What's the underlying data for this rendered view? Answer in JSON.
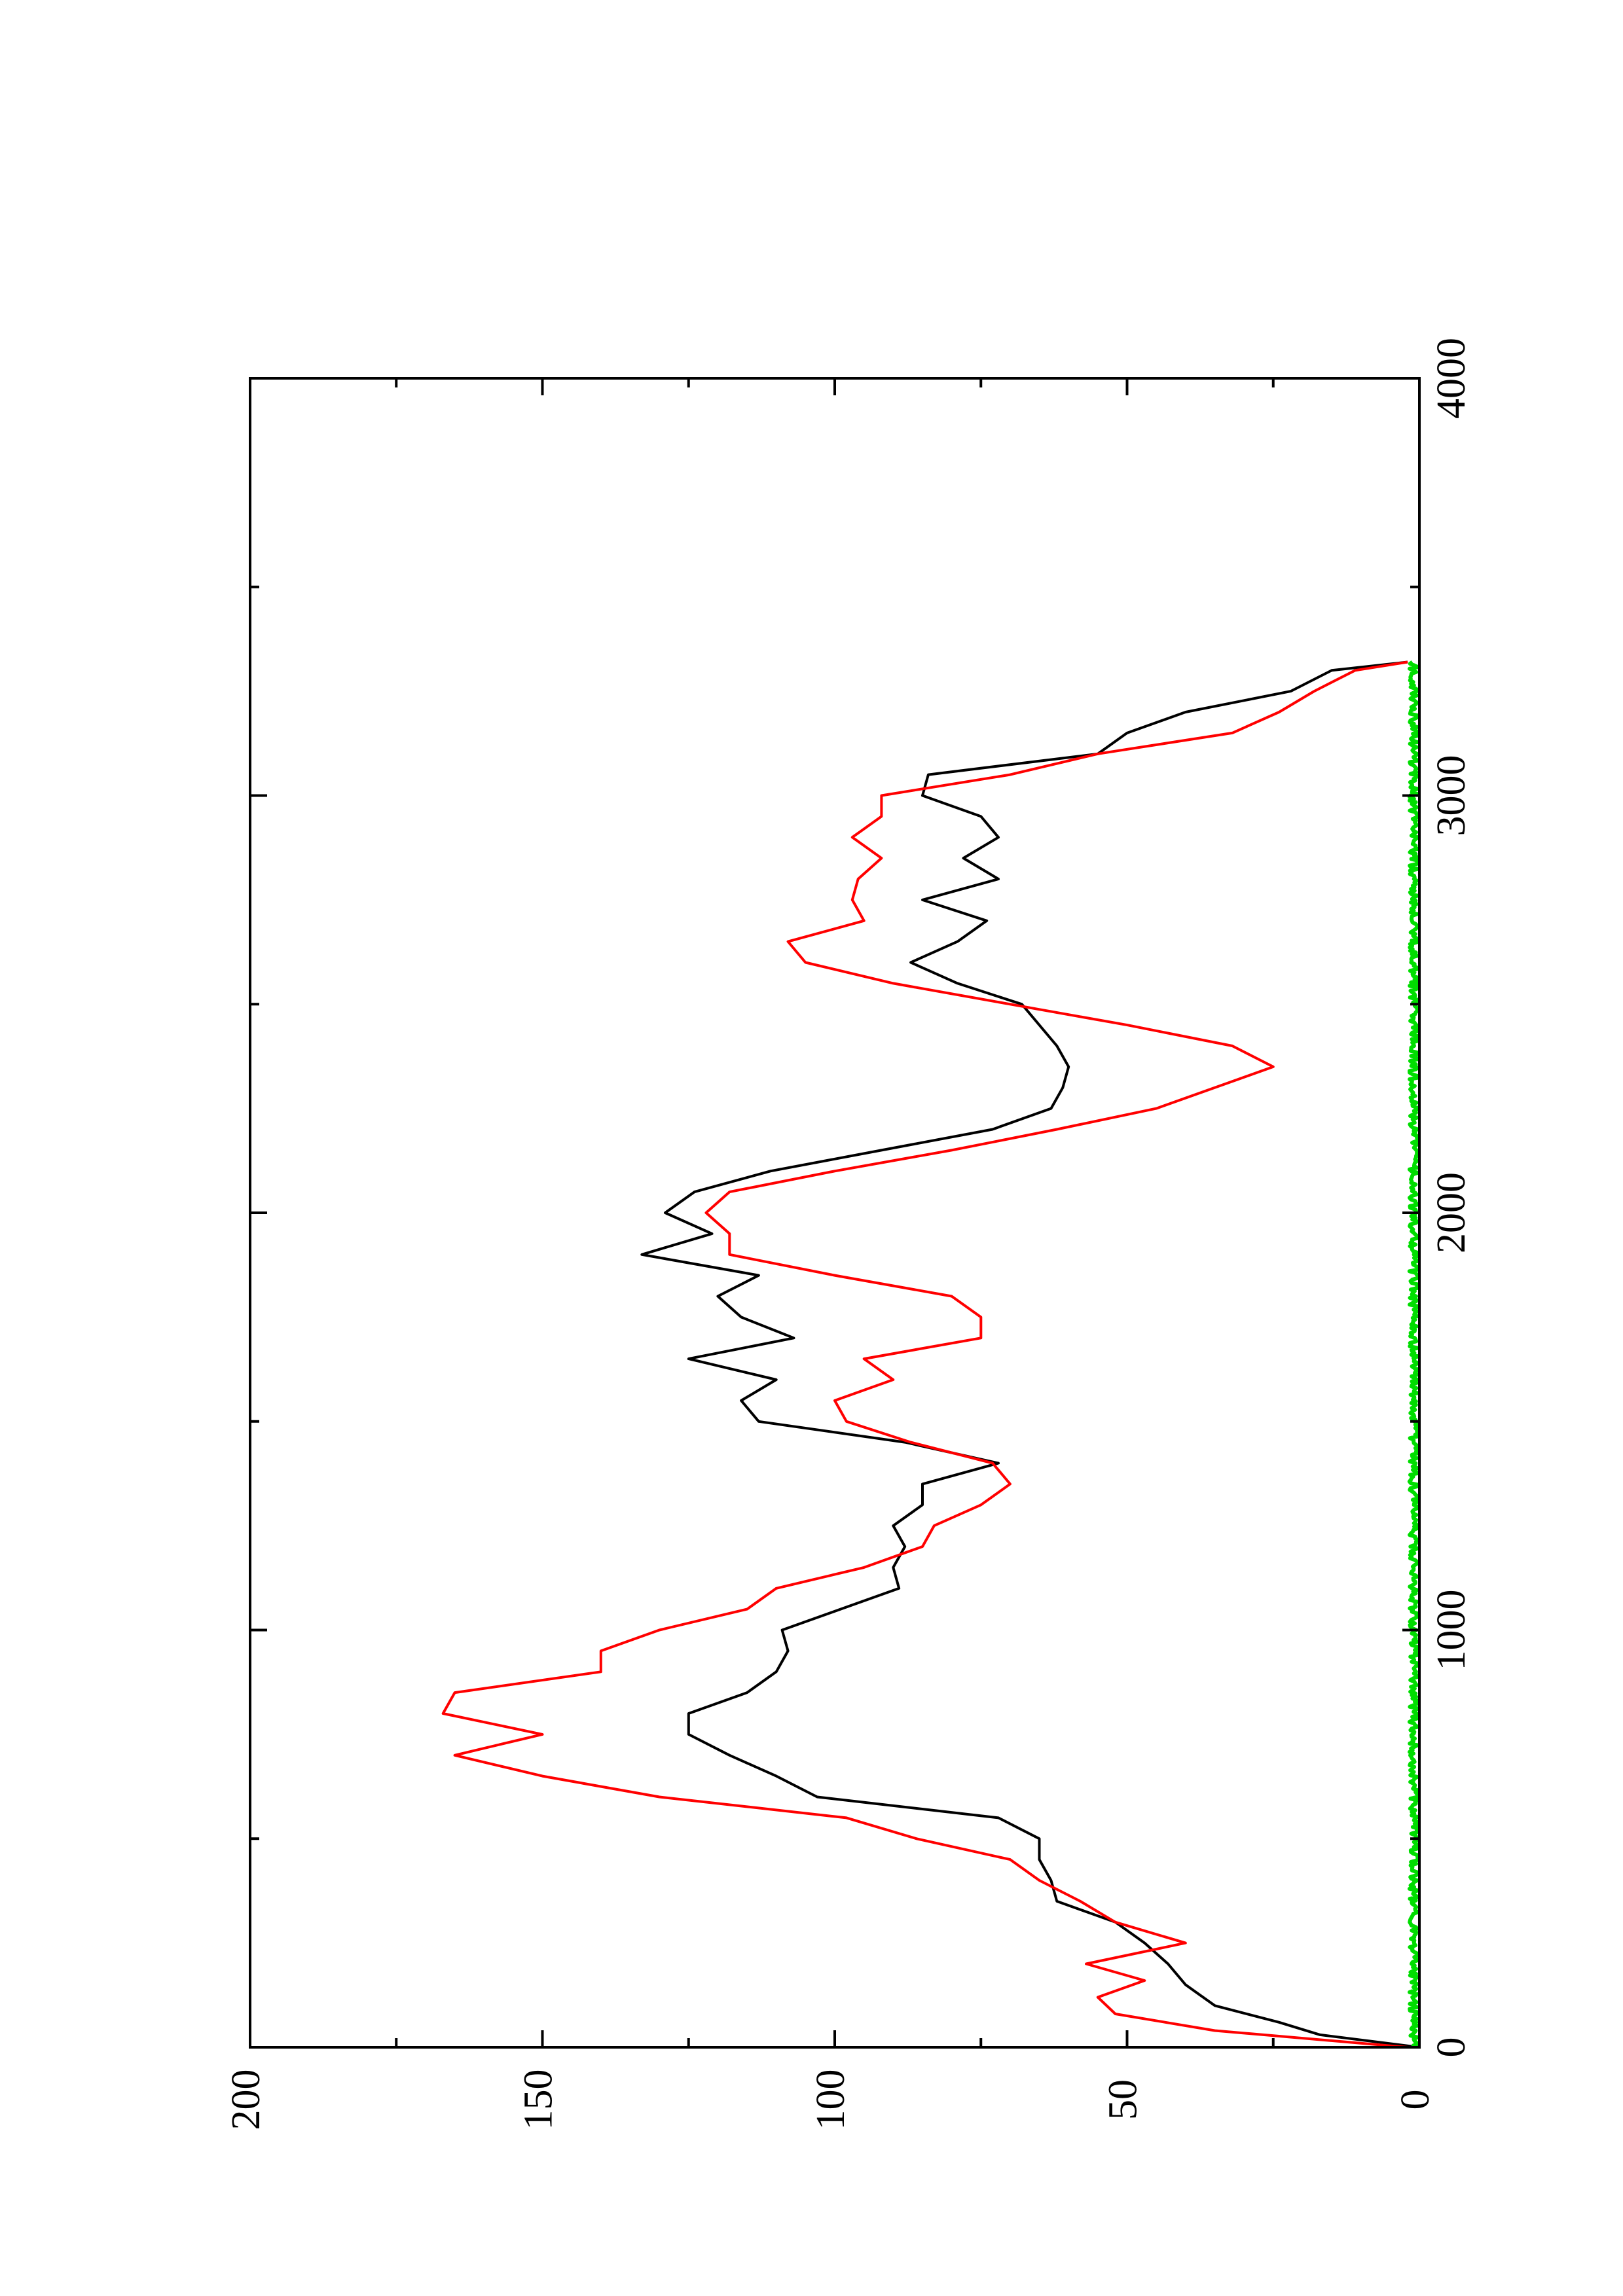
{
  "chart_data": {
    "type": "line",
    "orientation": "rotated-90-ccw",
    "title": "",
    "xlabel": "",
    "ylabel": "",
    "xlim": [
      0,
      4000
    ],
    "ylim": [
      0,
      200
    ],
    "x_ticks": [
      0,
      1000,
      2000,
      3000,
      4000
    ],
    "x_minor_ticks": [
      500,
      1500,
      2500,
      3500
    ],
    "y_ticks": [
      0,
      50,
      100,
      150,
      200
    ],
    "y_minor_ticks": [
      25,
      75,
      125,
      175
    ],
    "x_tick_labels": [
      "0",
      "1000",
      "2000",
      "3000",
      "4000"
    ],
    "y_tick_labels": [
      "0",
      "50",
      "100",
      "150",
      "200"
    ],
    "grid": false,
    "legend": "none",
    "series": [
      {
        "color": "#000000",
        "x": [
          0,
          30,
          60,
          100,
          150,
          200,
          250,
          300,
          350,
          400,
          450,
          500,
          550,
          600,
          650,
          700,
          750,
          800,
          850,
          900,
          950,
          1000,
          1050,
          1100,
          1150,
          1200,
          1250,
          1300,
          1350,
          1400,
          1450,
          1500,
          1550,
          1600,
          1650,
          1700,
          1750,
          1800,
          1850,
          1900,
          1950,
          2000,
          2050,
          2100,
          2150,
          2200,
          2250,
          2300,
          2350,
          2400,
          2450,
          2500,
          2550,
          2600,
          2650,
          2700,
          2750,
          2800,
          2850,
          2900,
          2950,
          3000,
          3050,
          3100,
          3150,
          3200,
          3250,
          3300,
          3320
        ],
        "y": [
          0,
          17,
          24,
          35,
          40,
          43,
          47,
          52,
          62,
          63,
          65,
          65,
          72,
          103,
          110,
          118,
          125,
          125,
          115,
          110,
          108,
          109,
          99,
          89,
          90,
          88,
          90,
          85,
          85,
          72,
          88,
          113,
          116,
          110,
          125,
          107,
          116,
          120,
          113,
          133,
          121,
          129,
          124,
          111,
          92,
          73,
          63,
          61,
          60,
          62,
          65,
          68,
          79,
          87,
          79,
          74,
          85,
          72,
          78,
          72,
          75,
          85,
          84,
          55,
          50,
          40,
          22,
          15,
          2
        ]
      },
      {
        "color": "#ff0000",
        "x": [
          0,
          40,
          80,
          120,
          160,
          200,
          250,
          300,
          350,
          400,
          450,
          500,
          550,
          600,
          650,
          700,
          750,
          800,
          850,
          900,
          950,
          1000,
          1050,
          1100,
          1150,
          1200,
          1250,
          1300,
          1350,
          1400,
          1450,
          1500,
          1550,
          1600,
          1650,
          1700,
          1750,
          1800,
          1850,
          1900,
          1950,
          2000,
          2050,
          2100,
          2150,
          2200,
          2250,
          2300,
          2350,
          2400,
          2450,
          2500,
          2550,
          2600,
          2650,
          2700,
          2750,
          2800,
          2850,
          2900,
          2950,
          3000,
          3050,
          3100,
          3150,
          3200,
          3250,
          3300,
          3320
        ],
        "y": [
          2,
          35,
          52,
          55,
          47,
          57,
          40,
          52,
          58,
          65,
          70,
          86,
          98,
          130,
          150,
          165,
          150,
          167,
          165,
          140,
          140,
          130,
          115,
          110,
          95,
          85,
          83,
          75,
          70,
          73,
          87,
          98,
          100,
          90,
          95,
          75,
          75,
          80,
          100,
          118,
          118,
          122,
          118,
          100,
          80,
          62,
          45,
          35,
          25,
          32,
          50,
          70,
          90,
          105,
          108,
          95,
          97,
          96,
          92,
          97,
          92,
          92,
          70,
          55,
          32,
          24,
          18,
          11,
          2
        ]
      },
      {
        "color": "#00dd00",
        "x": [
          0,
          400,
          800,
          1200,
          1600,
          2000,
          2400,
          2800,
          3200,
          3320
        ],
        "y": [
          1,
          1,
          1,
          1,
          1,
          1,
          1,
          1,
          1,
          1
        ]
      }
    ]
  }
}
